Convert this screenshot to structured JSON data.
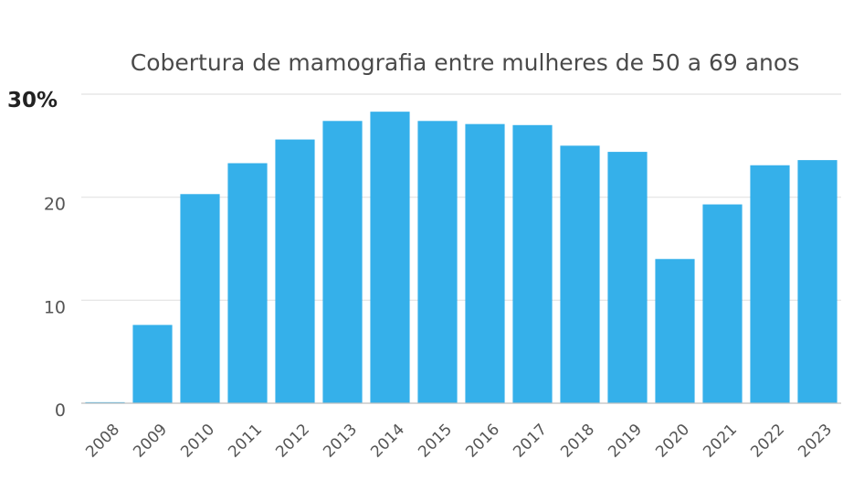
{
  "chart_data": {
    "type": "bar",
    "title": "Cobertura de mamografia entre mulheres de 50 a 69 anos",
    "xlabel": "",
    "ylabel": "",
    "categories": [
      "2008",
      "2009",
      "2010",
      "2011",
      "2012",
      "2013",
      "2014",
      "2015",
      "2016",
      "2017",
      "2018",
      "2019",
      "2020",
      "2021",
      "2022",
      "2023"
    ],
    "values": [
      0.1,
      7.6,
      20.3,
      23.3,
      25.6,
      27.4,
      28.3,
      27.4,
      27.1,
      27.0,
      25.0,
      24.4,
      14.0,
      19.3,
      23.1,
      23.6
    ],
    "ylim": [
      0,
      30
    ],
    "yticks": [
      {
        "value": 0,
        "label": "0"
      },
      {
        "value": 10,
        "label": "10"
      },
      {
        "value": 20,
        "label": "20"
      },
      {
        "value": 30,
        "label": "30%"
      }
    ],
    "grid": true,
    "legend": "none",
    "bar_color": "#35b0ea"
  }
}
